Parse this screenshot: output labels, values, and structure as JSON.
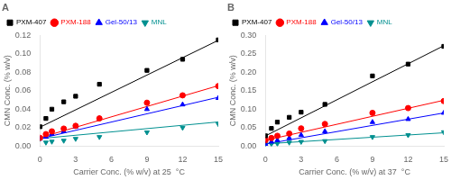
{
  "chart_data": [
    {
      "type": "scatter",
      "title": "A",
      "xlabel": "Carrier Conc. (% w/v) at 25  °C",
      "ylabel": "CMN Conc. (% w/v)",
      "xlim": [
        0,
        15
      ],
      "ylim": [
        0,
        0.12
      ],
      "xticks": [
        0,
        3,
        6,
        9,
        12,
        15
      ],
      "yticks": [
        {
          "value": 0,
          "label": "0.00"
        },
        0.02,
        0.04,
        0.06,
        0.08,
        {
          "value": 0.1,
          "label": "0.10"
        },
        0.12
      ],
      "grid": false,
      "legend": "upper left",
      "series": [
        {
          "name": "PXM-407",
          "color": "#000000",
          "marker": "square",
          "x": [
            0,
            0.5,
            1,
            2,
            3,
            5,
            9,
            12,
            15
          ],
          "values": [
            0.021,
            0.03,
            0.04,
            0.048,
            0.054,
            0.067,
            0.082,
            0.094,
            0.115
          ],
          "fit": {
            "x": [
              0,
              15
            ],
            "values": [
              0.0205,
              0.11455
            ]
          }
        },
        {
          "name": "PXM-188",
          "color": "#ff0000",
          "marker": "circle",
          "x": [
            0,
            0.5,
            1,
            2,
            3,
            5,
            9,
            12,
            15
          ],
          "values": [
            0.009,
            0.013,
            0.016,
            0.019,
            0.022,
            0.03,
            0.047,
            0.055,
            0.065
          ],
          "fit": {
            "x": [
              0,
              15
            ],
            "values": [
              0.0092,
              0.06545
            ]
          }
        },
        {
          "name": "Gel-50/13",
          "color": "#0000ff",
          "marker": "triangle-up",
          "x": [
            0,
            0.5,
            1,
            2,
            3,
            5,
            9,
            12,
            15
          ],
          "values": [
            0.008,
            0.01,
            0.013,
            0.016,
            0.021,
            0.03,
            0.04,
            0.045,
            0.052
          ],
          "fit": {
            "x": [
              0,
              15
            ],
            "values": [
              0.0082,
              0.0529
            ]
          }
        },
        {
          "name": "MNL",
          "color": "#009090",
          "marker": "triangle-down",
          "x": [
            0,
            0.5,
            1,
            2,
            3,
            5,
            9,
            12,
            15
          ],
          "values": [
            0.008,
            0.004,
            0.005,
            0.006,
            0.008,
            0.01,
            0.015,
            0.02,
            0.024
          ],
          "fit": {
            "x": [
              0,
              15
            ],
            "values": [
              0.0082,
              0.0262
            ]
          }
        }
      ]
    },
    {
      "type": "scatter",
      "title": "B",
      "xlabel": "Carrier Conc. (% w/v) at 37  °C",
      "ylabel": "CMN Conc. (% w/v)",
      "xlim": [
        0,
        15
      ],
      "ylim": [
        0,
        0.3
      ],
      "xticks": [
        0,
        3,
        6,
        9,
        12,
        15
      ],
      "yticks": [
        {
          "value": 0,
          "label": "0.00"
        },
        0.05,
        {
          "value": 0.1,
          "label": "0.10"
        },
        0.15,
        {
          "value": 0.2,
          "label": "0.20"
        },
        0.25,
        {
          "value": 0.3,
          "label": "0.30"
        }
      ],
      "grid": false,
      "legend": "upper left",
      "series": [
        {
          "name": "PXM-407",
          "color": "#000000",
          "marker": "square",
          "x": [
            0,
            0.5,
            1,
            2,
            3,
            5,
            9,
            12,
            15
          ],
          "values": [
            0.028,
            0.048,
            0.065,
            0.078,
            0.092,
            0.113,
            0.19,
            0.222,
            0.27
          ],
          "fit": {
            "x": [
              0,
              15
            ],
            "values": [
              0.0278,
              0.2717
            ]
          }
        },
        {
          "name": "PXM-188",
          "color": "#ff0000",
          "marker": "circle",
          "x": [
            0,
            0.5,
            1,
            2,
            3,
            5,
            9,
            12,
            15
          ],
          "values": [
            0.016,
            0.022,
            0.028,
            0.034,
            0.048,
            0.06,
            0.09,
            0.103,
            0.122
          ],
          "fit": {
            "x": [
              0,
              15
            ],
            "values": [
              0.0158,
              0.1241
            ]
          }
        },
        {
          "name": "Gel-50/13",
          "color": "#0000ff",
          "marker": "triangle-up",
          "x": [
            0,
            0.5,
            1,
            2,
            3,
            5,
            9,
            12,
            15
          ],
          "values": [
            0.006,
            0.012,
            0.016,
            0.022,
            0.03,
            0.04,
            0.065,
            0.073,
            0.09
          ],
          "fit": {
            "x": [
              0,
              15
            ],
            "values": [
              0.0058,
              0.0898
            ]
          }
        },
        {
          "name": "MNL",
          "color": "#009090",
          "marker": "triangle-down",
          "x": [
            0,
            0.5,
            1,
            2,
            3,
            5,
            9,
            12,
            15
          ],
          "values": [
            0.006,
            0.006,
            0.007,
            0.01,
            0.012,
            0.014,
            0.025,
            0.03,
            0.038
          ],
          "fit": {
            "x": [
              0,
              15
            ],
            "values": [
              0.0062,
              0.0362
            ]
          }
        }
      ]
    }
  ]
}
